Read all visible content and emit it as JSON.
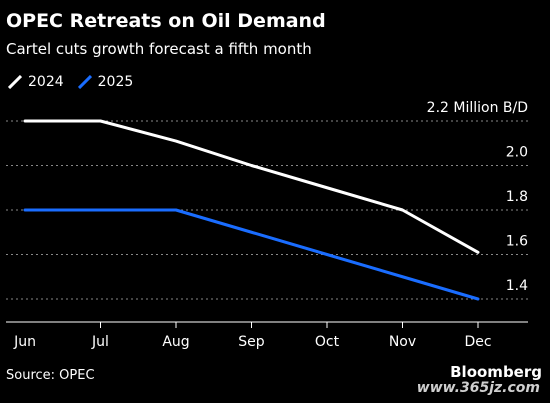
{
  "header": {
    "title": "OPEC Retreats on Oil Demand",
    "subtitle": "Cartel cuts growth forecast a fifth month"
  },
  "legend": [
    {
      "label": "2024",
      "color": "#ffffff"
    },
    {
      "label": "2025",
      "color": "#1a6dff"
    }
  ],
  "chart_data": {
    "type": "line",
    "title": "OPEC Retreats on Oil Demand",
    "subtitle": "Cartel cuts growth forecast a fifth month",
    "xlabel": "",
    "ylabel": "",
    "categories": [
      "Jun",
      "Jul",
      "Aug",
      "Sep",
      "Oct",
      "Nov",
      "Dec"
    ],
    "series": [
      {
        "name": "2024",
        "color": "#ffffff",
        "values": [
          2.2,
          2.2,
          2.11,
          2.0,
          1.9,
          1.8,
          1.61
        ]
      },
      {
        "name": "2025",
        "color": "#1a6dff",
        "values": [
          1.8,
          1.8,
          1.8,
          1.7,
          1.6,
          1.5,
          1.4
        ]
      }
    ],
    "y_ticks": [
      {
        "value": 2.2,
        "label": "2.2 Million B/D"
      },
      {
        "value": 2.0,
        "label": "2.0"
      },
      {
        "value": 1.8,
        "label": "1.8"
      },
      {
        "value": 1.6,
        "label": "1.6"
      },
      {
        "value": 1.4,
        "label": "1.4"
      }
    ],
    "ylim": [
      1.3,
      2.3
    ],
    "grid": true,
    "legend_position": "top-left"
  },
  "footer": {
    "source": "Source: OPEC",
    "brand": "Bloomberg",
    "watermark": "www.365jz.com"
  }
}
